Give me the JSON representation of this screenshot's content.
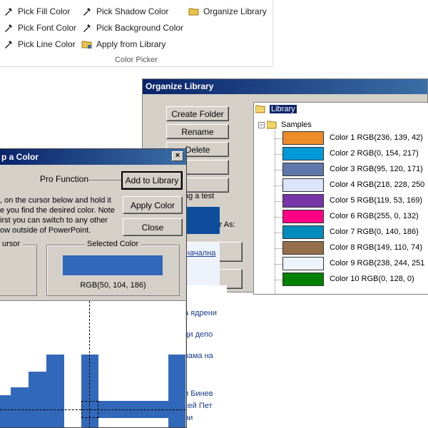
{
  "ribbon": {
    "caption": "Color Picker",
    "col1": [
      "Pick Fill Color",
      "Pick Font Color",
      "Pick Line Color"
    ],
    "col2": [
      "Pick Shadow Color",
      "Pick Background Color",
      "Apply from Library"
    ],
    "col3": [
      "Organize Library"
    ]
  },
  "organize": {
    "title": "Organize Library",
    "buttons": [
      "Create Folder",
      "Rename",
      "Delete"
    ],
    "hidden_text": "ng a test",
    "label_as": "olor As:",
    "tree_root": "Library",
    "tree_folder": "Samples",
    "colors": [
      {
        "name": "Color 1",
        "rgb": "RGB(236, 139, 42)",
        "hex": "#ec8b2a"
      },
      {
        "name": "Color 2",
        "rgb": "RGB(0, 154, 217)",
        "hex": "#009ad9"
      },
      {
        "name": "Color 3",
        "rgb": "RGB(95, 120, 171)",
        "hex": "#5f78ab"
      },
      {
        "name": "Color 4",
        "rgb": "RGB(218, 228, 250",
        "hex": "#dae4fa"
      },
      {
        "name": "Color 5",
        "rgb": "RGB(119, 53, 169)",
        "hex": "#7735a9"
      },
      {
        "name": "Color 6",
        "rgb": "RGB(255, 0, 132)",
        "hex": "#ff0084"
      },
      {
        "name": "Color 7",
        "rgb": "RGB(0, 140, 186)",
        "hex": "#008cba"
      },
      {
        "name": "Color 8",
        "rgb": "RGB(149, 110, 74)",
        "hex": "#956e4a"
      },
      {
        "name": "Color 9",
        "rgb": "RGB(238, 244, 251",
        "hex": "#eef4fb"
      },
      {
        "name": "Color 10",
        "rgb": "RGB(0, 128, 0)",
        "hex": "#008000"
      }
    ]
  },
  "pick": {
    "title": "p a Color",
    "pro_function": "Pro Function",
    "add_to_library": "Add to Library",
    "apply_color": "Apply Color",
    "close": "Close",
    "instructions": [
      ", on the cursor below and hold it",
      "e you find the desired color. Note",
      "irst you can switch to any other",
      "ow outside of PowerPoint."
    ],
    "cursor_label": "ursor",
    "selected_label": "Selected Color",
    "selected_rgb": "RGB(50, 104, 186)",
    "selected_hex": "#3268ba"
  },
  "background_page": {
    "links": [
      "начална",
      "а ядрени",
      "ди депо",
      "вама на",
      "и Бинев",
      "сей Пет",
      "ри"
    ]
  }
}
